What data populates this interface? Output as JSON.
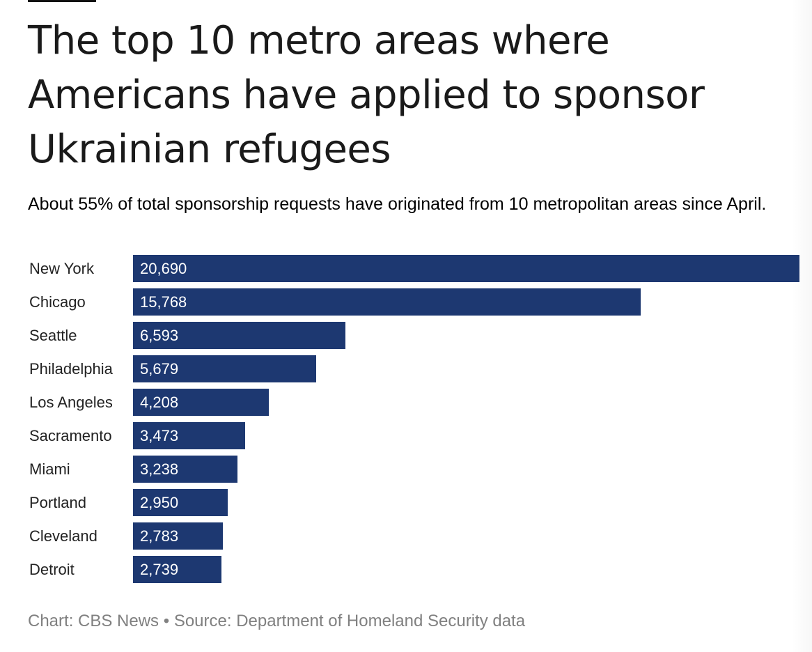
{
  "title": "The top 10 metro areas where Americans have applied to sponsor Ukrainian refugees",
  "subtitle": "About 55% of total sponsorship requests have originated from 10 metropolitan areas since April.",
  "footer": {
    "credit": "Chart: CBS News",
    "separator": "•",
    "source": "Source: Department of Homeland Security data"
  },
  "colors": {
    "bar": "#1d3871",
    "bar_text": "#ffffff",
    "footer_text": "#808080"
  },
  "chart_data": {
    "type": "bar",
    "orientation": "horizontal",
    "title": "The top 10 metro areas where Americans have applied to sponsor Ukrainian refugees",
    "subtitle": "About 55% of total sponsorship requests have originated from 10 metropolitan areas since April.",
    "categories": [
      "New York",
      "Chicago",
      "Seattle",
      "Philadelphia",
      "Los Angeles",
      "Sacramento",
      "Miami",
      "Portland",
      "Cleveland",
      "Detroit"
    ],
    "values": [
      20690,
      15768,
      6593,
      5679,
      4208,
      3473,
      3238,
      2950,
      2783,
      2739
    ],
    "value_labels": [
      "20,690",
      "15,768",
      "6,593",
      "5,679",
      "4,208",
      "3,473",
      "3,238",
      "2,950",
      "2,783",
      "2,739"
    ],
    "xlabel": "",
    "ylabel": "",
    "xlim": [
      0,
      20690
    ],
    "grid": false,
    "legend": "none"
  }
}
